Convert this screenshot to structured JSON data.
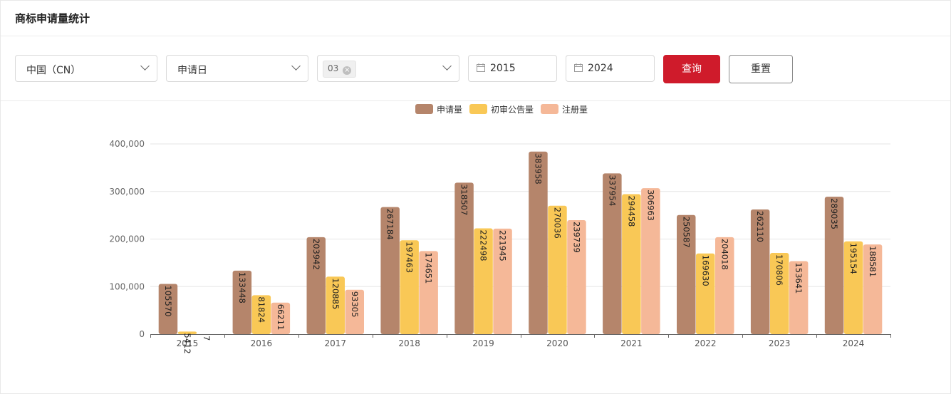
{
  "page": {
    "title": "商标申请量统计"
  },
  "filters": {
    "country": "中国（CN）",
    "date_type": "申请日",
    "class_tag": "03",
    "class_tag_remove": "×",
    "start_year": "2015",
    "end_year": "2024"
  },
  "buttons": {
    "query": "查询",
    "reset": "重置"
  },
  "colors": {
    "apply": "#b5856b",
    "prelim": "#f9c856",
    "register": "#f5b898",
    "primary": "#cf1b2b"
  },
  "chart_data": {
    "type": "bar",
    "categories": [
      "2015",
      "2016",
      "2017",
      "2018",
      "2019",
      "2020",
      "2021",
      "2022",
      "2023",
      "2024"
    ],
    "series": [
      {
        "name": "申请量",
        "values": [
          105570,
          133448,
          203942,
          267184,
          318507,
          383958,
          337954,
          250587,
          262110,
          289035
        ]
      },
      {
        "name": "初审公告量",
        "values": [
          5412,
          81824,
          120885,
          197463,
          222498,
          270036,
          294458,
          169630,
          170806,
          195154
        ]
      },
      {
        "name": "注册量",
        "values": [
          7,
          66211,
          93305,
          174651,
          221945,
          239739,
          306963,
          204018,
          153641,
          188581
        ]
      }
    ],
    "yticks": [
      "0",
      "100,000",
      "200,000",
      "300,000",
      "400,000"
    ],
    "ylim": [
      0,
      400000
    ],
    "legend_position": "top-center",
    "grid": true
  }
}
